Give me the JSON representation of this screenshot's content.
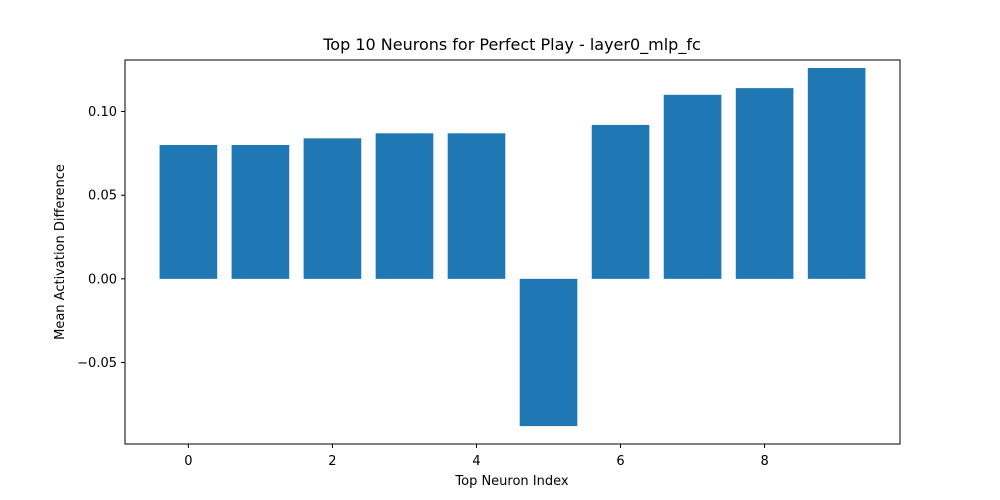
{
  "chart_data": {
    "type": "bar",
    "title": "Top 10 Neurons for Perfect Play - layer0_mlp_fc",
    "xlabel": "Top Neuron Index",
    "ylabel": "Mean Activation Difference",
    "categories": [
      0,
      1,
      2,
      3,
      4,
      5,
      6,
      7,
      8,
      9
    ],
    "values": [
      0.08,
      0.08,
      0.084,
      0.087,
      0.087,
      -0.088,
      0.092,
      0.11,
      0.114,
      0.126
    ],
    "xlim": [
      -0.88,
      9.88
    ],
    "ylim": [
      -0.0987,
      0.1308
    ],
    "xticks": [
      0,
      2,
      4,
      6,
      8
    ],
    "xtick_labels": [
      "0",
      "2",
      "4",
      "6",
      "8"
    ],
    "yticks": [
      -0.05,
      0.0,
      0.05,
      0.1
    ],
    "ytick_labels": [
      "−0.05",
      "0.00",
      "0.05",
      "0.10"
    ],
    "bar_color": "#1f77b4",
    "grid": false,
    "legend": "none"
  }
}
